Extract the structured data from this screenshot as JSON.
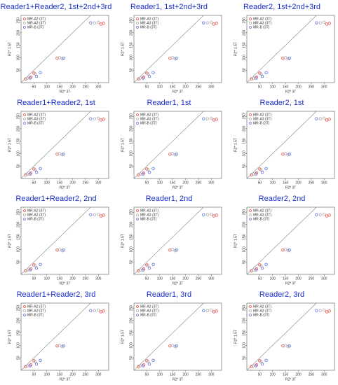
{
  "chart_data": [
    {
      "type": "scatter",
      "title": "Reader1+Reader2, 1st+2nd+3rd",
      "xlabel": "R2* 3T",
      "ylabel": "R2* 1.5T",
      "xlim": [
        0,
        340
      ],
      "ylim": [
        0,
        270
      ],
      "xticks": [
        50,
        100,
        150,
        200,
        250,
        300
      ],
      "yticks": [
        50,
        100,
        150,
        200,
        250
      ],
      "legend": "upper left",
      "series": [
        {
          "name": "MR-A2 (3T)",
          "color": "#e8483f",
          "x": [
            18,
            38,
            50,
            140,
            310,
            320
          ],
          "values": [
            15,
            22,
            38,
            98,
            235,
            238
          ]
        },
        {
          "name": "MR-A3 (3T)",
          "color": "#aaaaaa",
          "x": [
            25,
            55,
            150,
            160,
            285,
            300
          ],
          "values": [
            18,
            35,
            100,
            95,
            240,
            242
          ]
        },
        {
          "name": "MR-B (3T)",
          "color": "#5a6ee0",
          "x": [
            35,
            60,
            75,
            165,
            270
          ],
          "values": [
            18,
            25,
            40,
            98,
            240
          ]
        }
      ]
    },
    {
      "type": "scatter",
      "title": "Reader1, 1st+2nd+3rd",
      "xlabel": "R2* 3T",
      "ylabel": "R2* 1.5T",
      "xlim": [
        0,
        340
      ],
      "ylim": [
        0,
        270
      ],
      "xticks": [
        50,
        100,
        150,
        200,
        250,
        300
      ],
      "yticks": [
        50,
        100,
        150,
        200,
        250
      ],
      "legend": "upper left",
      "series": [
        {
          "name": "MR-A2 (3T)",
          "color": "#e8483f",
          "x": [
            18,
            38,
            50,
            140,
            310,
            320
          ],
          "values": [
            15,
            22,
            38,
            98,
            235,
            238
          ]
        },
        {
          "name": "MR-A3 (3T)",
          "color": "#aaaaaa",
          "x": [
            25,
            55,
            150,
            160,
            285,
            300
          ],
          "values": [
            18,
            35,
            100,
            95,
            240,
            242
          ]
        },
        {
          "name": "MR-B (3T)",
          "color": "#5a6ee0",
          "x": [
            35,
            60,
            75,
            165,
            270
          ],
          "values": [
            18,
            25,
            40,
            98,
            240
          ]
        }
      ]
    },
    {
      "type": "scatter",
      "title": "Reader2, 1st+2nd+3rd",
      "xlabel": "R2* 3T",
      "ylabel": "R2* 1.5T",
      "xlim": [
        0,
        340
      ],
      "ylim": [
        0,
        270
      ],
      "xticks": [
        50,
        100,
        150,
        200,
        250,
        300
      ],
      "yticks": [
        50,
        100,
        150,
        200,
        250
      ],
      "legend": "upper left",
      "series": [
        {
          "name": "MR-A2 (3T)",
          "color": "#e8483f",
          "x": [
            18,
            38,
            50,
            140,
            310,
            320
          ],
          "values": [
            15,
            22,
            38,
            98,
            235,
            238
          ]
        },
        {
          "name": "MR-A3 (3T)",
          "color": "#aaaaaa",
          "x": [
            25,
            55,
            150,
            160,
            285,
            300
          ],
          "values": [
            18,
            35,
            100,
            95,
            240,
            242
          ]
        },
        {
          "name": "MR-B (3T)",
          "color": "#5a6ee0",
          "x": [
            35,
            60,
            75,
            165,
            270
          ],
          "values": [
            18,
            25,
            40,
            98,
            240
          ]
        }
      ]
    },
    {
      "type": "scatter",
      "title": "Reader1+Reader2, 1st",
      "xlabel": "R2* 3T",
      "ylabel": "R2* 1.5T",
      "xlim": [
        0,
        340
      ],
      "ylim": [
        0,
        270
      ],
      "xticks": [
        50,
        100,
        150,
        200,
        250,
        300
      ],
      "yticks": [
        50,
        100,
        150,
        200,
        250
      ],
      "legend": "upper left",
      "series": [
        {
          "name": "MR-A2 (3T)",
          "color": "#e8483f",
          "x": [
            18,
            38,
            50,
            140,
            310,
            320
          ],
          "values": [
            15,
            22,
            38,
            98,
            235,
            238
          ]
        },
        {
          "name": "MR-A3 (3T)",
          "color": "#aaaaaa",
          "x": [
            25,
            55,
            150,
            160,
            285,
            300
          ],
          "values": [
            18,
            35,
            100,
            95,
            240,
            242
          ]
        },
        {
          "name": "MR-B (3T)",
          "color": "#5a6ee0",
          "x": [
            35,
            60,
            75,
            165,
            270
          ],
          "values": [
            18,
            25,
            40,
            98,
            240
          ]
        }
      ]
    },
    {
      "type": "scatter",
      "title": "Reader1, 1st",
      "xlabel": "R2* 3T",
      "ylabel": "R2* 1.5T",
      "xlim": [
        0,
        340
      ],
      "ylim": [
        0,
        270
      ],
      "xticks": [
        50,
        100,
        150,
        200,
        250,
        300
      ],
      "yticks": [
        50,
        100,
        150,
        200,
        250
      ],
      "legend": "upper left",
      "series": [
        {
          "name": "MR-A2 (3T)",
          "color": "#e8483f",
          "x": [
            18,
            38,
            50,
            140,
            310,
            320
          ],
          "values": [
            15,
            22,
            38,
            98,
            235,
            238
          ]
        },
        {
          "name": "MR-A3 (3T)",
          "color": "#aaaaaa",
          "x": [
            25,
            55,
            150,
            160,
            285,
            300
          ],
          "values": [
            18,
            35,
            100,
            95,
            240,
            242
          ]
        },
        {
          "name": "MR-B (3T)",
          "color": "#5a6ee0",
          "x": [
            35,
            60,
            75,
            165,
            270
          ],
          "values": [
            18,
            25,
            40,
            98,
            240
          ]
        }
      ]
    },
    {
      "type": "scatter",
      "title": "Reader2, 1st",
      "xlabel": "R2* 3T",
      "ylabel": "R2* 1.5T",
      "xlim": [
        0,
        340
      ],
      "ylim": [
        0,
        270
      ],
      "xticks": [
        50,
        100,
        150,
        200,
        250,
        300
      ],
      "yticks": [
        50,
        100,
        150,
        200,
        250
      ],
      "legend": "upper left",
      "series": [
        {
          "name": "MR-A2 (3T)",
          "color": "#e8483f",
          "x": [
            18,
            38,
            50,
            140,
            310,
            320
          ],
          "values": [
            15,
            22,
            38,
            98,
            235,
            238
          ]
        },
        {
          "name": "MR-A3 (3T)",
          "color": "#aaaaaa",
          "x": [
            25,
            55,
            150,
            160,
            285,
            300
          ],
          "values": [
            18,
            35,
            100,
            95,
            240,
            242
          ]
        },
        {
          "name": "MR-B (3T)",
          "color": "#5a6ee0",
          "x": [
            35,
            60,
            75,
            165,
            270
          ],
          "values": [
            18,
            25,
            40,
            98,
            240
          ]
        }
      ]
    },
    {
      "type": "scatter",
      "title": "Reader1+Reader2, 2nd",
      "xlabel": "R2* 3T",
      "ylabel": "R2* 1.5T",
      "xlim": [
        0,
        340
      ],
      "ylim": [
        0,
        270
      ],
      "xticks": [
        50,
        100,
        150,
        200,
        250,
        300
      ],
      "yticks": [
        50,
        100,
        150,
        200,
        250
      ],
      "legend": "upper left",
      "series": [
        {
          "name": "MR-A2 (3T)",
          "color": "#e8483f",
          "x": [
            18,
            38,
            50,
            140,
            310,
            320
          ],
          "values": [
            15,
            22,
            38,
            98,
            235,
            238
          ]
        },
        {
          "name": "MR-A3 (3T)",
          "color": "#aaaaaa",
          "x": [
            25,
            55,
            150,
            160,
            285,
            300
          ],
          "values": [
            18,
            35,
            100,
            95,
            240,
            242
          ]
        },
        {
          "name": "MR-B (3T)",
          "color": "#5a6ee0",
          "x": [
            35,
            60,
            75,
            165,
            270
          ],
          "values": [
            18,
            25,
            40,
            98,
            240
          ]
        }
      ]
    },
    {
      "type": "scatter",
      "title": "Reader1, 2nd",
      "xlabel": "R2* 3T",
      "ylabel": "R2* 1.5T",
      "xlim": [
        0,
        340
      ],
      "ylim": [
        0,
        270
      ],
      "xticks": [
        50,
        100,
        150,
        200,
        250,
        300
      ],
      "yticks": [
        50,
        100,
        150,
        200,
        250
      ],
      "legend": "upper left",
      "series": [
        {
          "name": "MR-A2 (3T)",
          "color": "#e8483f",
          "x": [
            18,
            38,
            50,
            140,
            310,
            320
          ],
          "values": [
            15,
            22,
            38,
            98,
            235,
            238
          ]
        },
        {
          "name": "MR-A3 (3T)",
          "color": "#aaaaaa",
          "x": [
            25,
            55,
            150,
            160,
            285,
            300
          ],
          "values": [
            18,
            35,
            100,
            95,
            240,
            242
          ]
        },
        {
          "name": "MR-B (3T)",
          "color": "#5a6ee0",
          "x": [
            35,
            60,
            75,
            165,
            270
          ],
          "values": [
            18,
            25,
            40,
            98,
            240
          ]
        }
      ]
    },
    {
      "type": "scatter",
      "title": "Reader2, 2nd",
      "xlabel": "R2* 3T",
      "ylabel": "R2* 1.5T",
      "xlim": [
        0,
        340
      ],
      "ylim": [
        0,
        270
      ],
      "xticks": [
        50,
        100,
        150,
        200,
        250,
        300
      ],
      "yticks": [
        50,
        100,
        150,
        200,
        250
      ],
      "legend": "upper left",
      "series": [
        {
          "name": "MR-A2 (3T)",
          "color": "#e8483f",
          "x": [
            18,
            38,
            50,
            140,
            310,
            320
          ],
          "values": [
            15,
            22,
            38,
            98,
            235,
            238
          ]
        },
        {
          "name": "MR-A3 (3T)",
          "color": "#aaaaaa",
          "x": [
            25,
            55,
            150,
            160,
            285,
            300
          ],
          "values": [
            18,
            35,
            100,
            95,
            240,
            242
          ]
        },
        {
          "name": "MR-B (3T)",
          "color": "#5a6ee0",
          "x": [
            35,
            60,
            75,
            165,
            270
          ],
          "values": [
            18,
            25,
            40,
            98,
            240
          ]
        }
      ]
    },
    {
      "type": "scatter",
      "title": "Reader1+Reader2, 3rd",
      "xlabel": "R2* 3T",
      "ylabel": "R2* 1.5T",
      "xlim": [
        0,
        340
      ],
      "ylim": [
        0,
        270
      ],
      "xticks": [
        50,
        100,
        150,
        200,
        250,
        300
      ],
      "yticks": [
        50,
        100,
        150,
        200,
        250
      ],
      "legend": "upper left",
      "series": [
        {
          "name": "MR-A2 (3T)",
          "color": "#e8483f",
          "x": [
            18,
            38,
            50,
            140,
            310,
            320
          ],
          "values": [
            15,
            22,
            38,
            98,
            235,
            238
          ]
        },
        {
          "name": "MR-A3 (3T)",
          "color": "#aaaaaa",
          "x": [
            25,
            55,
            150,
            160,
            285,
            300
          ],
          "values": [
            18,
            35,
            100,
            95,
            240,
            242
          ]
        },
        {
          "name": "MR-B (3T)",
          "color": "#5a6ee0",
          "x": [
            35,
            60,
            75,
            165,
            270
          ],
          "values": [
            18,
            25,
            40,
            98,
            240
          ]
        }
      ]
    },
    {
      "type": "scatter",
      "title": "Reader1, 3rd",
      "xlabel": "R2* 3T",
      "ylabel": "R2* 1.5T",
      "xlim": [
        0,
        340
      ],
      "ylim": [
        0,
        270
      ],
      "xticks": [
        50,
        100,
        150,
        200,
        250,
        300
      ],
      "yticks": [
        50,
        100,
        150,
        200,
        250
      ],
      "legend": "upper left",
      "series": [
        {
          "name": "MR-A2 (3T)",
          "color": "#e8483f",
          "x": [
            18,
            38,
            50,
            140,
            310,
            320
          ],
          "values": [
            15,
            22,
            38,
            98,
            235,
            238
          ]
        },
        {
          "name": "MR-A3 (3T)",
          "color": "#aaaaaa",
          "x": [
            25,
            55,
            150,
            160,
            285,
            300
          ],
          "values": [
            18,
            35,
            100,
            95,
            240,
            242
          ]
        },
        {
          "name": "MR-B (3T)",
          "color": "#5a6ee0",
          "x": [
            35,
            60,
            75,
            165,
            270
          ],
          "values": [
            18,
            25,
            40,
            98,
            240
          ]
        }
      ]
    },
    {
      "type": "scatter",
      "title": "Reader2, 3rd",
      "xlabel": "R2* 3T",
      "ylabel": "R2* 1.5T",
      "xlim": [
        0,
        340
      ],
      "ylim": [
        0,
        270
      ],
      "xticks": [
        50,
        100,
        150,
        200,
        250,
        300
      ],
      "yticks": [
        50,
        100,
        150,
        200,
        250
      ],
      "legend": "upper left",
      "series": [
        {
          "name": "MR-A2 (3T)",
          "color": "#e8483f",
          "x": [
            18,
            38,
            50,
            140,
            310,
            320
          ],
          "values": [
            15,
            22,
            38,
            98,
            235,
            238
          ]
        },
        {
          "name": "MR-A3 (3T)",
          "color": "#aaaaaa",
          "x": [
            25,
            55,
            150,
            160,
            285,
            300
          ],
          "values": [
            18,
            35,
            100,
            95,
            240,
            242
          ]
        },
        {
          "name": "MR-B (3T)",
          "color": "#5a6ee0",
          "x": [
            35,
            60,
            75,
            165,
            270
          ],
          "values": [
            18,
            25,
            40,
            98,
            240
          ]
        }
      ]
    }
  ]
}
